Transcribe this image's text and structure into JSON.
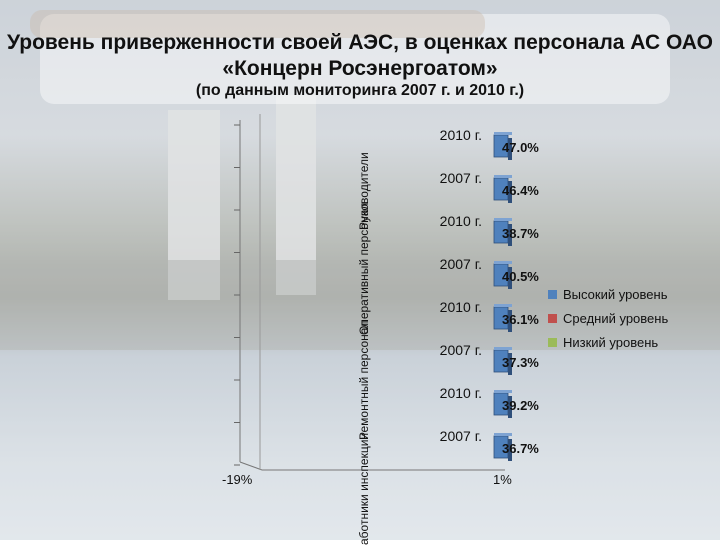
{
  "title": "Уровень приверженности своей АЭС, в оценках персонала АС ОАО «Концерн Росэнергоатом»",
  "subtitle": "(по данным мониторинга 2007 г. и 2010 г.)",
  "chart_data": {
    "type": "bar",
    "orientation": "horizontal",
    "title": "Уровень приверженности своей АЭС, в оценках персонала АС ОАО «Концерн Росэнергоатом»",
    "subtitle": "(по данным мониторинга 2007 г. и 2010 г.)",
    "group_labels": [
      "Руководители",
      "Оперативный персонал",
      "Ремонтный персонал",
      "Работники инспекции"
    ],
    "group_labels_display": [
      "Руководители",
      "Оперативный персонал",
      "Ремонтный персонал",
      "аботники инспекции"
    ],
    "categories": [
      "2010 г.",
      "2007 г.",
      "2010 г.",
      "2007 г.",
      "2010 г.",
      "2007 г.",
      "2010 г.",
      "2007 г."
    ],
    "category_groups": [
      "Руководители",
      "Руководители",
      "Оперативный персонал",
      "Оперативный персонал",
      "Ремонтный персонал",
      "Ремонтный персонал",
      "Работники инспекции",
      "Работники инспекции"
    ],
    "series": [
      {
        "name": "Высокий уровень",
        "values": [
          47.0,
          46.4,
          38.7,
          40.5,
          36.1,
          37.3,
          39.2,
          36.7
        ],
        "color": "#4f81bd"
      },
      {
        "name": "Средний уровень",
        "values": [
          null,
          null,
          null,
          null,
          null,
          null,
          null,
          null
        ],
        "color": "#c0504d"
      },
      {
        "name": "Низкий уровень",
        "values": [
          null,
          null,
          null,
          null,
          null,
          null,
          null,
          null
        ],
        "color": "#9bbb59"
      }
    ],
    "value_labels": [
      "47.0%",
      "46.4%",
      "38.7%",
      "40.5%",
      "36.1%",
      "37.3%",
      "39.2%",
      "36.7%"
    ],
    "x_tick_labels": [
      "-19%",
      "1%"
    ],
    "legend_position": "right",
    "grid": true
  }
}
